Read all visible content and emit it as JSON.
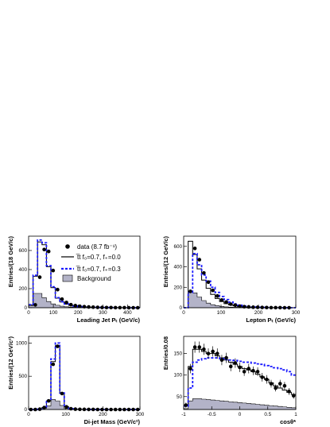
{
  "colors": {
    "data": "#000000",
    "f03": "#1a1aff",
    "f00": "#000000",
    "background_fill": "#b3b3c8",
    "background_edge": "#000000"
  },
  "legend": {
    "data_label": "data (8.7 fb⁻¹)",
    "f00_label": "t̅t f₀=0.7, f₊=0.0",
    "f03_label": "t̅t f₀=0.7, f₊=0.3",
    "background_label": "Background"
  },
  "chart_data": [
    {
      "type": "histogram",
      "panel": "top-left",
      "xlabel": "Leading Jet Pₜ (GeV/c)",
      "ylabel": "Entries/(18 GeV/c)",
      "xlim": [
        0,
        450
      ],
      "ylim": [
        0,
        750
      ],
      "xticks": [
        0,
        100,
        200,
        300,
        400
      ],
      "xtick_labels": [
        "0",
        "100",
        "200",
        "300",
        "400"
      ],
      "yticks": [
        0,
        200,
        400,
        600
      ],
      "ytick_labels": [
        "0",
        "200",
        "400",
        "600"
      ],
      "bin_edges": [
        0,
        18,
        36,
        54,
        72,
        90,
        108,
        126,
        144,
        162,
        180,
        198,
        216,
        234,
        252,
        270,
        288,
        306,
        324,
        342,
        360,
        378,
        396,
        414,
        432,
        450
      ],
      "data": {
        "x": [
          27,
          45,
          63,
          81,
          99,
          117,
          135,
          153,
          171,
          189,
          207,
          225,
          243,
          261,
          279,
          297,
          315,
          333,
          351,
          369,
          387,
          405,
          423,
          441
        ],
        "y": [
          30,
          320,
          610,
          590,
          390,
          190,
          90,
          55,
          32,
          22,
          15,
          11,
          8,
          6,
          4,
          3,
          2,
          2,
          1,
          1,
          1,
          0,
          0,
          0
        ]
      },
      "f00": [
        30,
        330,
        690,
        660,
        430,
        210,
        100,
        60,
        38,
        25,
        16,
        11,
        8,
        6,
        4,
        3,
        2,
        2,
        1,
        1,
        1,
        0,
        0,
        0,
        0
      ],
      "f03": [
        32,
        340,
        710,
        680,
        440,
        220,
        105,
        63,
        40,
        26,
        17,
        12,
        8,
        6,
        4,
        3,
        2,
        2,
        1,
        1,
        1,
        0,
        0,
        0,
        0
      ],
      "background": [
        20,
        150,
        150,
        105,
        65,
        40,
        26,
        16,
        10,
        7,
        5,
        3,
        2,
        2,
        1,
        1,
        1,
        0,
        0,
        0,
        0,
        0,
        0,
        0,
        0
      ]
    },
    {
      "type": "histogram",
      "panel": "top-right",
      "xlabel": "Lepton Pₜ (GeV/c)",
      "ylabel": "Entries/(12 GeV/c)",
      "xlim": [
        0,
        300
      ],
      "ylim": [
        0,
        700
      ],
      "xticks": [
        0,
        100,
        200,
        300
      ],
      "xtick_labels": [
        "0",
        "100",
        "200",
        "300"
      ],
      "yticks": [
        0,
        200,
        400,
        600
      ],
      "ytick_labels": [
        "0",
        "200",
        "400",
        "600"
      ],
      "bin_edges": [
        0,
        12,
        24,
        36,
        48,
        60,
        72,
        84,
        96,
        108,
        120,
        132,
        144,
        156,
        168,
        180,
        192,
        204,
        216,
        228,
        240,
        252,
        264,
        276,
        288,
        300
      ],
      "data": {
        "x": [
          18,
          30,
          42,
          54,
          66,
          78,
          90,
          102,
          114,
          126,
          138,
          150,
          162,
          174,
          186,
          198,
          210,
          222,
          234,
          246,
          258,
          270,
          282
        ],
        "y": [
          160,
          580,
          470,
          340,
          250,
          170,
          115,
          75,
          55,
          35,
          25,
          15,
          10,
          8,
          5,
          4,
          3,
          2,
          1,
          1,
          1,
          0,
          0
        ]
      },
      "f00": [
        0,
        650,
        520,
        380,
        270,
        190,
        130,
        90,
        60,
        40,
        28,
        18,
        12,
        8,
        6,
        4,
        3,
        2,
        1,
        1,
        1,
        0,
        0,
        0,
        0
      ],
      "f03": [
        0,
        150,
        530,
        420,
        320,
        260,
        200,
        150,
        110,
        80,
        55,
        38,
        25,
        17,
        11,
        8,
        5,
        3,
        2,
        1,
        1,
        0,
        0,
        0,
        0
      ],
      "background": [
        0,
        160,
        145,
        105,
        70,
        45,
        30,
        20,
        13,
        8,
        5,
        4,
        3,
        2,
        1,
        1,
        1,
        0,
        0,
        0,
        0,
        0,
        0,
        0,
        0
      ]
    },
    {
      "type": "histogram",
      "panel": "bottom-left",
      "xlabel": "Di-jet Mass (GeV/c²)",
      "ylabel": "Entries/(12 GeV/c²)",
      "xlim": [
        0,
        300
      ],
      "ylim": [
        0,
        1100
      ],
      "xticks": [
        0,
        100,
        200,
        300
      ],
      "xtick_labels": [
        "0",
        "100",
        "200",
        "300"
      ],
      "yticks": [
        0,
        500,
        1000
      ],
      "ytick_labels": [
        "0",
        "500",
        "1000"
      ],
      "bin_edges": [
        0,
        12,
        24,
        36,
        48,
        60,
        72,
        84,
        96,
        108,
        120,
        132,
        144,
        156,
        168,
        180,
        192,
        204,
        216,
        228,
        240,
        252,
        264,
        276,
        288,
        300
      ],
      "data": {
        "x": [
          6,
          18,
          30,
          42,
          54,
          66,
          78,
          90,
          102,
          114,
          126,
          138,
          150,
          162,
          174,
          186,
          198,
          210,
          222,
          234,
          246,
          258,
          270,
          282,
          294
        ],
        "y": [
          0,
          0,
          5,
          30,
          130,
          680,
          950,
          240,
          40,
          12,
          5,
          3,
          2,
          1,
          1,
          0,
          0,
          0,
          0,
          0,
          0,
          0,
          0,
          0,
          0
        ]
      },
      "f00": [
        0,
        0,
        5,
        30,
        130,
        720,
        960,
        240,
        40,
        12,
        5,
        3,
        2,
        1,
        1,
        0,
        0,
        0,
        0,
        0,
        0,
        0,
        0,
        0,
        0
      ],
      "f03": [
        0,
        0,
        5,
        30,
        140,
        760,
        1000,
        250,
        42,
        12,
        5,
        3,
        2,
        1,
        1,
        0,
        0,
        0,
        0,
        0,
        0,
        0,
        0,
        0,
        0
      ],
      "background": [
        0,
        0,
        3,
        15,
        55,
        150,
        130,
        60,
        15,
        6,
        3,
        2,
        1,
        1,
        0,
        0,
        0,
        0,
        0,
        0,
        0,
        0,
        0,
        0,
        0
      ]
    },
    {
      "type": "histogram",
      "panel": "bottom-right",
      "xlabel": "cosθ*",
      "ylabel": "Entries/0.08",
      "xlim": [
        -1,
        1
      ],
      "ylim": [
        20,
        190
      ],
      "xticks": [
        -1,
        -0.5,
        0,
        0.5,
        1
      ],
      "xtick_labels": [
        "-1",
        "-0.5",
        "0",
        "0.5",
        "1"
      ],
      "yticks": [
        50,
        100,
        150
      ],
      "ytick_labels": [
        "50",
        "100",
        "150"
      ],
      "bin_edges": [
        -1.0,
        -0.92,
        -0.84,
        -0.76,
        -0.68,
        -0.6,
        -0.52,
        -0.44,
        -0.36,
        -0.28,
        -0.2,
        -0.12,
        -0.04,
        0.04,
        0.12,
        0.2,
        0.28,
        0.36,
        0.44,
        0.52,
        0.6,
        0.68,
        0.76,
        0.84,
        0.92,
        1.0
      ],
      "data": {
        "x": [
          -0.96,
          -0.88,
          -0.8,
          -0.72,
          -0.64,
          -0.56,
          -0.48,
          -0.4,
          -0.32,
          -0.24,
          -0.16,
          -0.08,
          0.0,
          0.08,
          0.16,
          0.24,
          0.32,
          0.4,
          0.48,
          0.56,
          0.64,
          0.72,
          0.8,
          0.88,
          0.96
        ],
        "y": [
          30,
          115,
          165,
          165,
          160,
          150,
          155,
          150,
          135,
          140,
          120,
          128,
          118,
          108,
          115,
          110,
          108,
          95,
          90,
          80,
          70,
          80,
          75,
          62,
          52
        ],
        "err": [
          6,
          11,
          13,
          13,
          13,
          12,
          12,
          12,
          12,
          12,
          11,
          11,
          11,
          10,
          11,
          10,
          10,
          10,
          10,
          9,
          8,
          9,
          9,
          8,
          7
        ]
      },
      "f00": [
        30,
        120,
        160,
        160,
        155,
        150,
        150,
        145,
        140,
        135,
        130,
        125,
        120,
        115,
        112,
        108,
        102,
        96,
        90,
        82,
        75,
        70,
        65,
        60,
        55
      ],
      "f03": [
        28,
        70,
        130,
        135,
        138,
        140,
        140,
        140,
        138,
        136,
        135,
        134,
        132,
        130,
        130,
        128,
        126,
        125,
        122,
        120,
        117,
        115,
        112,
        108,
        100
      ],
      "background": [
        22,
        40,
        45,
        45,
        44,
        43,
        42,
        41,
        40,
        39,
        38,
        37,
        36,
        35,
        34,
        33,
        32,
        31,
        30,
        29,
        28,
        27,
        26,
        25,
        24
      ]
    }
  ]
}
